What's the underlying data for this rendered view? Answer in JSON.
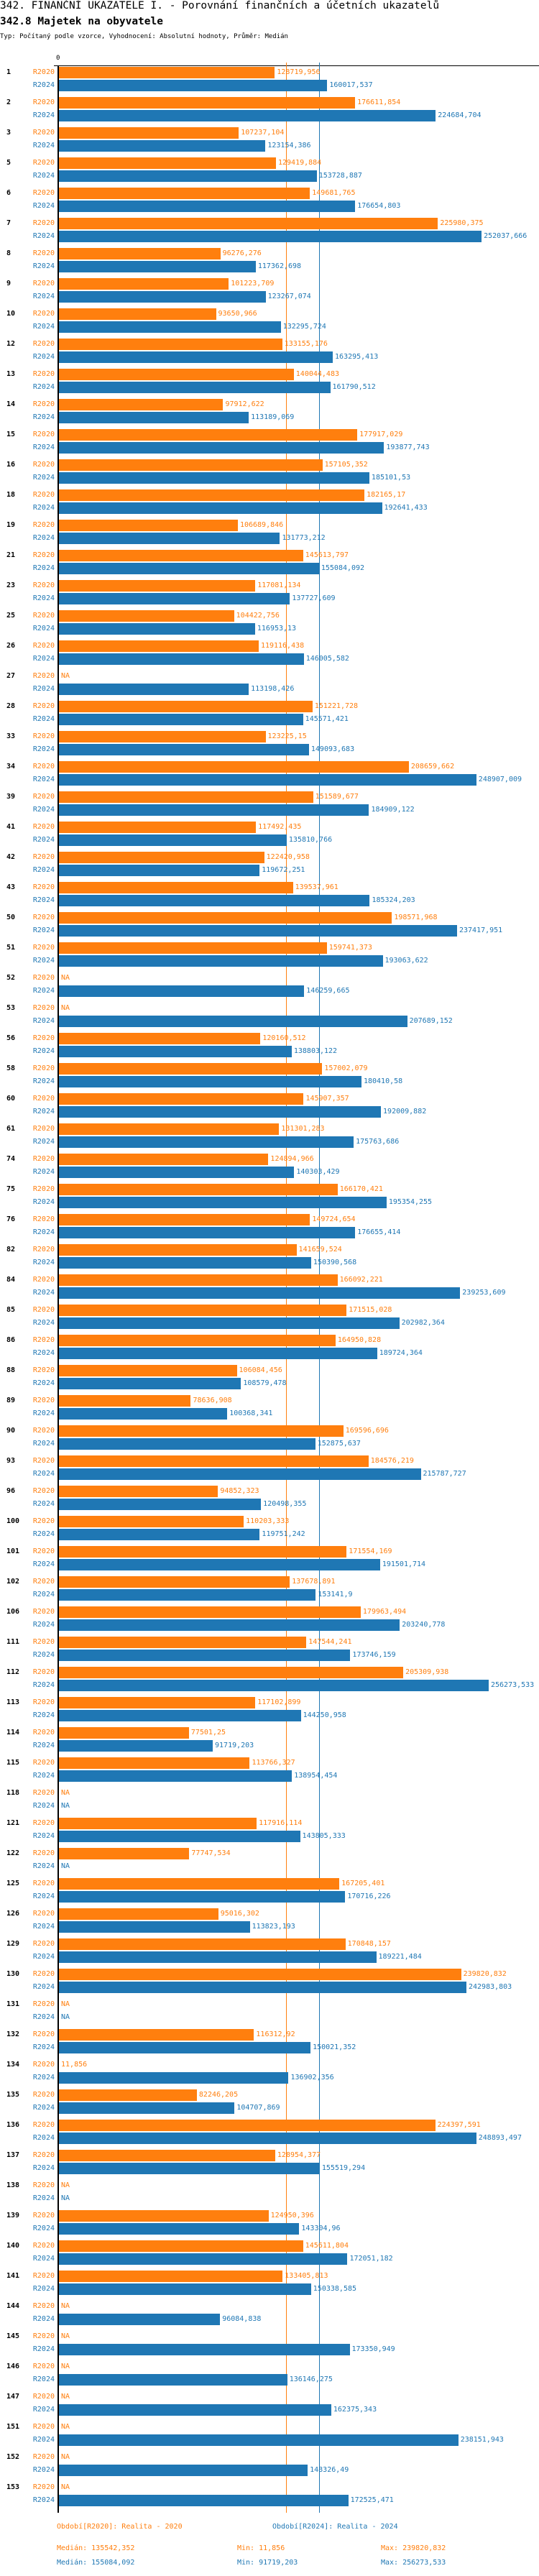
{
  "header": {
    "title": "342. FINANČNÍ UKAZATELE I. - Porovnání finančních a účetních ukazatelů",
    "subtitle": "342.8 Majetek na obyvatele",
    "type_line": "Typ: Počítaný podle vzorce, Vyhodnocení: Absolutní hodnoty, Průměr: Medián"
  },
  "colors": {
    "r2020": "#ff7f0e",
    "r2024": "#1f77b4"
  },
  "chart_data": {
    "type": "bar",
    "orientation": "horizontal",
    "xlim": [
      0,
      256273.533
    ],
    "x_tick_labels": [
      "0"
    ],
    "na_label": "NA",
    "categories": [
      "1",
      "2",
      "3",
      "5",
      "6",
      "7",
      "8",
      "9",
      "10",
      "12",
      "13",
      "14",
      "15",
      "16",
      "18",
      "19",
      "21",
      "23",
      "25",
      "26",
      "27",
      "28",
      "33",
      "34",
      "39",
      "41",
      "42",
      "43",
      "50",
      "51",
      "52",
      "53",
      "56",
      "58",
      "60",
      "61",
      "74",
      "75",
      "76",
      "82",
      "84",
      "85",
      "86",
      "88",
      "89",
      "90",
      "93",
      "96",
      "100",
      "101",
      "102",
      "106",
      "111",
      "112",
      "113",
      "114",
      "115",
      "118",
      "121",
      "122",
      "125",
      "126",
      "129",
      "130",
      "131",
      "132",
      "134",
      "135",
      "136",
      "137",
      "138",
      "139",
      "140",
      "141",
      "144",
      "145",
      "146",
      "147",
      "151",
      "152",
      "153"
    ],
    "series": [
      {
        "name": "R2020",
        "values": [
          128719.956,
          176611.854,
          107237.104,
          129419.884,
          149681.765,
          225980.375,
          96276.276,
          101223.709,
          93650.966,
          133155.176,
          140044.483,
          97912.622,
          177917.029,
          157105.352,
          182165.17,
          106689.846,
          145613.797,
          117081.134,
          104422.756,
          119116.438,
          null,
          151221.728,
          123225.15,
          208659.662,
          151589.677,
          117492.435,
          122420.958,
          139537.961,
          198571.968,
          159741.373,
          null,
          null,
          120160.512,
          157002.079,
          145907.357,
          131301.283,
          124894.966,
          166170.421,
          149724.654,
          141659.524,
          166092.221,
          171515.028,
          164950.828,
          106084.456,
          78636.908,
          169596.696,
          184576.219,
          94852.323,
          110203.333,
          171554.169,
          137678.891,
          179963.494,
          147544.241,
          205309.938,
          117102.899,
          77501.25,
          113766.327,
          null,
          117916.114,
          77747.534,
          167205.401,
          95016.302,
          170848.157,
          239820.832,
          null,
          116312.92,
          11.856,
          82246.205,
          224397.591,
          128954.377,
          null,
          124950.396,
          145611.804,
          133405.813,
          null,
          null,
          null,
          null,
          null,
          null,
          null
        ]
      },
      {
        "name": "R2024",
        "values": [
          160017.537,
          224684.704,
          123154.386,
          153728.887,
          176654.803,
          252037.666,
          117362.698,
          123267.074,
          132295.724,
          163295.413,
          161790.512,
          113189.069,
          193877.743,
          185101.53,
          192641.433,
          131773.212,
          155084.092,
          137727.609,
          116953.13,
          146005.582,
          113198.426,
          145571.421,
          149093.683,
          248907.009,
          184909.122,
          135810.766,
          119672.251,
          185324.203,
          237417.951,
          193063.622,
          146259.665,
          207689.152,
          138803.122,
          180410.58,
          192009.882,
          175763.686,
          140303.429,
          195354.255,
          176655.414,
          150390.568,
          239253.609,
          202982.364,
          189724.364,
          108579.478,
          100368.341,
          152875.637,
          215787.727,
          120498.355,
          119751.242,
          191501.714,
          153141.9,
          203240.778,
          173746.159,
          256273.533,
          144250.958,
          91719.203,
          138954.454,
          null,
          143805.333,
          null,
          170716.226,
          113823.193,
          189221.484,
          242983.803,
          null,
          150021.352,
          136902.356,
          104707.869,
          248893.497,
          155519.294,
          null,
          143304.96,
          172051.182,
          150338.585,
          96084.838,
          173350.949,
          136146.275,
          162375.343,
          238151.943,
          148326.49,
          172525.471
        ]
      }
    ],
    "reference_lines": [
      {
        "series": "R2020",
        "label": "Medián",
        "value": 135542.352
      },
      {
        "series": "R2024",
        "label": "Medián",
        "value": 155084.092
      }
    ]
  },
  "legend": {
    "r2020_title": "Období[R2020]: Realita - 2020",
    "r2024_title": "Období[R2024]: Realita - 2024",
    "r2020_median": "Medián: 135542,352",
    "r2020_min": "Min: 11,856",
    "r2020_max": "Max: 239820,832",
    "r2024_median": "Medián: 155084,092",
    "r2024_min": "Min: 91719,203",
    "r2024_max": "Max: 256273,533"
  }
}
